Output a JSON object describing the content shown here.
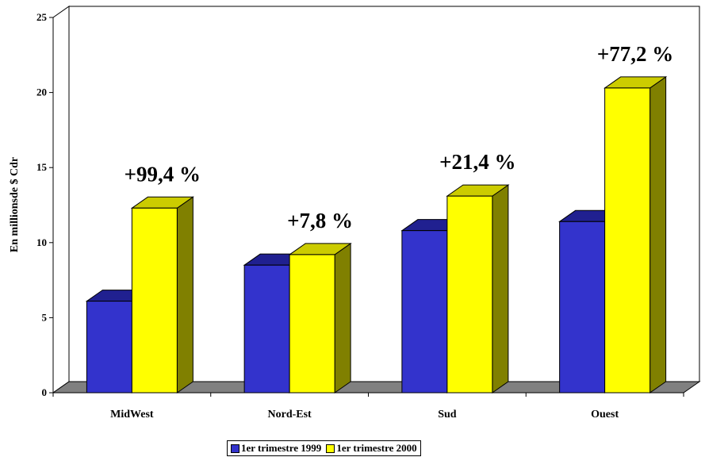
{
  "chart_data": {
    "type": "bar",
    "title": "",
    "xlabel": "",
    "ylabel": "En millionsde $ Cdr",
    "ylim": [
      0,
      25
    ],
    "yticks": [
      "0",
      "5",
      "10",
      "15",
      "20",
      "25"
    ],
    "categories": [
      "MidWest",
      "Nord-Est",
      "Sud",
      "Ouest"
    ],
    "series": [
      {
        "name": "1er trimestre 1999",
        "values": [
          6.1,
          8.5,
          10.8,
          11.4
        ]
      },
      {
        "name": "1er trimestre 2000",
        "values": [
          12.3,
          9.2,
          13.1,
          20.3
        ]
      }
    ],
    "annotations": [
      "+99,4 %",
      "+7,8 %",
      "+21,4 %",
      "+77,2 %"
    ],
    "colors": {
      "series1_front": "#3333cc",
      "series1_top": "#202090",
      "series1_side": "#1a1a70",
      "series2_front": "#ffff00",
      "series2_top": "#cccc00",
      "series2_side": "#808000",
      "floor": "#808080"
    },
    "legend_position": "bottom",
    "grid": false
  }
}
